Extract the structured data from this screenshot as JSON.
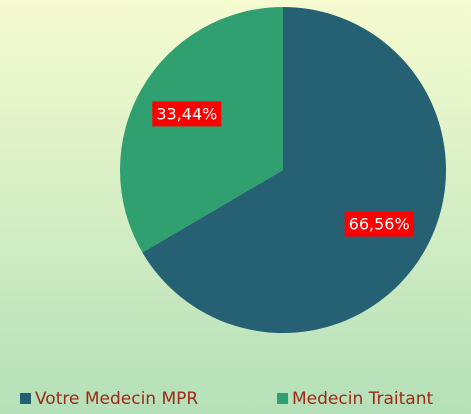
{
  "chart_data": {
    "type": "pie",
    "categories": [
      "Votre Medecin MPR",
      "Medecin Traitant"
    ],
    "values": [
      66.56,
      33.44
    ],
    "value_labels": [
      "66,56%",
      "33,44%"
    ],
    "colors": [
      "#256173",
      "#30a070"
    ],
    "legend": "bottom"
  }
}
